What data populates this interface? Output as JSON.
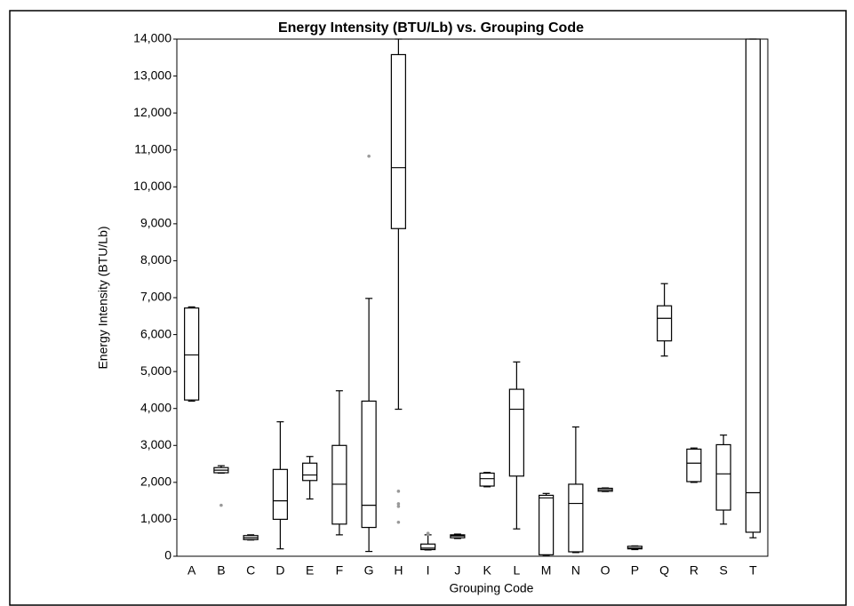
{
  "chart_data": {
    "type": "box",
    "title": "Energy Intensity (BTU/Lb) vs. Grouping Code",
    "x_label": "Grouping Code",
    "y_label": "Energy Intensity (BTU/Lb)",
    "categories": [
      "A",
      "B",
      "C",
      "D",
      "E",
      "F",
      "G",
      "H",
      "I",
      "J",
      "K",
      "L",
      "M",
      "N",
      "O",
      "P",
      "Q",
      "R",
      "S",
      "T"
    ],
    "boxes": [
      {
        "low": 4200,
        "q1": 4230,
        "median": 5450,
        "q3": 6720,
        "high": 6750,
        "outliers": []
      },
      {
        "low": 2250,
        "q1": 2260,
        "median": 2330,
        "q3": 2400,
        "high": 2450,
        "outliers": [
          1380
        ]
      },
      {
        "low": 440,
        "q1": 450,
        "median": 500,
        "q3": 560,
        "high": 580,
        "outliers": []
      },
      {
        "low": 200,
        "q1": 1000,
        "median": 1500,
        "q3": 2350,
        "high": 3640,
        "outliers": []
      },
      {
        "low": 1550,
        "q1": 2050,
        "median": 2200,
        "q3": 2520,
        "high": 2700,
        "outliers": []
      },
      {
        "low": 580,
        "q1": 870,
        "median": 1950,
        "q3": 3000,
        "high": 4480,
        "outliers": []
      },
      {
        "low": 130,
        "q1": 780,
        "median": 1380,
        "q3": 4200,
        "high": 6980,
        "outliers": [
          10830
        ]
      },
      {
        "low": 3980,
        "q1": 8870,
        "median": 10520,
        "q3": 13580,
        "high": 14000,
        "outliers": [
          1760,
          1420,
          1350,
          920
        ]
      },
      {
        "low": 170,
        "q1": 180,
        "median": 220,
        "q3": 330,
        "high": 580,
        "outliers": [
          620,
          600
        ]
      },
      {
        "low": 480,
        "q1": 500,
        "median": 550,
        "q3": 580,
        "high": 600,
        "outliers": []
      },
      {
        "low": 1880,
        "q1": 1900,
        "median": 2100,
        "q3": 2250,
        "high": 2270,
        "outliers": []
      },
      {
        "low": 740,
        "q1": 2170,
        "median": 3980,
        "q3": 4520,
        "high": 5260,
        "outliers": []
      },
      {
        "low": 30,
        "q1": 40,
        "median": 1580,
        "q3": 1650,
        "high": 1700,
        "outliers": []
      },
      {
        "low": 100,
        "q1": 120,
        "median": 1430,
        "q3": 1950,
        "high": 3500,
        "outliers": []
      },
      {
        "low": 1750,
        "q1": 1760,
        "median": 1800,
        "q3": 1840,
        "high": 1850,
        "outliers": []
      },
      {
        "low": 180,
        "q1": 200,
        "median": 220,
        "q3": 270,
        "high": 280,
        "outliers": []
      },
      {
        "low": 5420,
        "q1": 5830,
        "median": 6440,
        "q3": 6780,
        "high": 7380,
        "outliers": []
      },
      {
        "low": 2000,
        "q1": 2020,
        "median": 2520,
        "q3": 2900,
        "high": 2930,
        "outliers": []
      },
      {
        "low": 870,
        "q1": 1250,
        "median": 2230,
        "q3": 3020,
        "high": 3280,
        "outliers": []
      },
      {
        "low": 500,
        "q1": 650,
        "median": 1720,
        "q3": 14000,
        "high": 14000,
        "outliers": []
      }
    ],
    "box_color": "#000000",
    "outlier_color": "#999999",
    "ylim": [
      0,
      14000
    ],
    "yticks": [
      0,
      {
        "value": 1000,
        "label": "1,000"
      },
      {
        "value": 2000,
        "label": "2,000"
      },
      {
        "value": 3000,
        "label": "3,000"
      },
      {
        "value": 4000,
        "label": "4,000"
      },
      {
        "value": 5000,
        "label": "5,000"
      },
      {
        "value": 6000,
        "label": "6,000"
      },
      {
        "value": 7000,
        "label": "7,000"
      },
      {
        "value": 8000,
        "label": "8,000"
      },
      {
        "value": 9000,
        "label": "9,000"
      },
      {
        "value": 10000,
        "label": "10,000"
      },
      {
        "value": 11000,
        "label": "11,000"
      },
      {
        "value": 12000,
        "label": "12,000"
      },
      {
        "value": 13000,
        "label": "13,000"
      },
      {
        "value": 14000,
        "label": "14,000"
      }
    ]
  }
}
